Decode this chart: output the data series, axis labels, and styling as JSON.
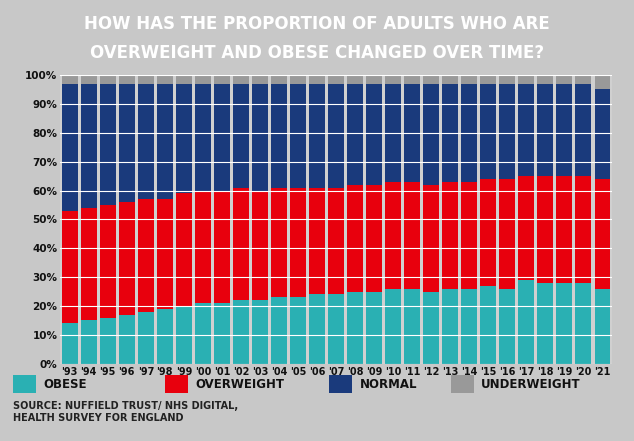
{
  "years": [
    "'93",
    "'94",
    "'95",
    "'96",
    "'97",
    "'98",
    "'99",
    "'00",
    "'01",
    "'02",
    "'03",
    "'04",
    "'05",
    "'06",
    "'07",
    "'08",
    "'09",
    "'10",
    "'11",
    "'12",
    "'13",
    "'14",
    "'15",
    "'16",
    "'17",
    "'18",
    "'19",
    "'20",
    "'21"
  ],
  "obese": [
    14,
    15,
    16,
    17,
    18,
    19,
    20,
    21,
    21,
    22,
    22,
    23,
    23,
    24,
    24,
    25,
    25,
    26,
    26,
    25,
    26,
    26,
    27,
    26,
    29,
    28,
    28,
    28,
    26
  ],
  "overweight": [
    39,
    39,
    39,
    39,
    39,
    38,
    39,
    39,
    39,
    39,
    38,
    38,
    38,
    37,
    37,
    37,
    37,
    37,
    37,
    37,
    37,
    37,
    37,
    38,
    36,
    37,
    37,
    37,
    38
  ],
  "normal": [
    44,
    43,
    42,
    41,
    40,
    40,
    38,
    37,
    37,
    36,
    37,
    36,
    36,
    36,
    36,
    35,
    35,
    34,
    34,
    35,
    34,
    34,
    33,
    33,
    32,
    32,
    32,
    32,
    31
  ],
  "underweight": [
    3,
    3,
    3,
    3,
    3,
    3,
    3,
    3,
    3,
    3,
    3,
    3,
    3,
    3,
    3,
    3,
    3,
    3,
    3,
    3,
    3,
    3,
    3,
    3,
    3,
    3,
    3,
    3,
    5
  ],
  "colors": {
    "obese": "#2ab0b3",
    "overweight": "#e8000d",
    "normal": "#1a3a7c",
    "underweight": "#999999"
  },
  "title_line1": "HOW HAS THE PROPORTION OF ADULTS WHO ARE",
  "title_line2": "OVERWEIGHT AND OBESE CHANGED OVER TIME?",
  "title_bg": "#6b2d8b",
  "source": "SOURCE: NUFFIELD TRUST/ NHS DIGITAL,\nHEALTH SURVEY FOR ENGLAND",
  "bg_color": "#c8c8c8",
  "chart_bg": "#d0d0d0",
  "ylim": [
    0,
    100
  ],
  "yticks": [
    0,
    10,
    20,
    30,
    40,
    50,
    60,
    70,
    80,
    90,
    100
  ],
  "ytick_labels": [
    "0%",
    "10%",
    "20%",
    "30%",
    "40%",
    "50%",
    "60%",
    "70%",
    "80%",
    "90%",
    "100%"
  ]
}
